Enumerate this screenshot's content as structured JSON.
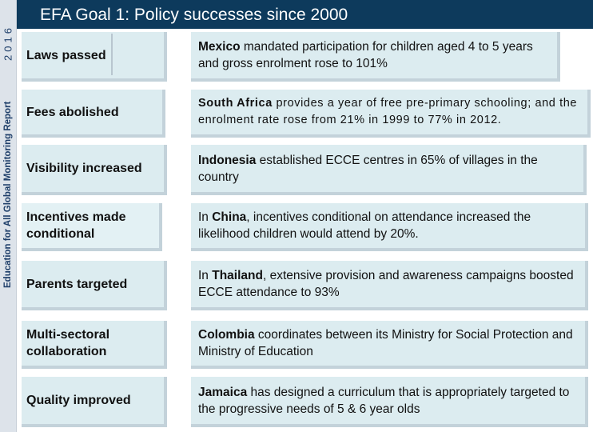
{
  "sidebar": {
    "year": "2016",
    "report": "Education for All Global Monitoring Report"
  },
  "header": {
    "title": "EFA Goal 1: Policy successes since 2000"
  },
  "rows": [
    {
      "label": "Laws passed",
      "country": "Mexico",
      "text": " mandated participation for children aged 4 to 5 years and gross enrolment rose to 101%"
    },
    {
      "label": "Fees abolished",
      "country": "South Africa",
      "text": " provides a year of free pre-primary schooling; and the enrolment rate rose from 21% in 1999 to 77% in 2012."
    },
    {
      "label": "Visibility increased",
      "country": "Indonesia",
      "text": " established ECCE centres in 65% of villages in the country"
    },
    {
      "label": "Incentives made conditional",
      "prefix": "In ",
      "country": "China",
      "text": ", incentives conditional on attendance increased the likelihood children would attend by 20%."
    },
    {
      "label": "Parents targeted",
      "prefix": "In ",
      "country": "Thailand",
      "text": ", extensive provision and awareness campaigns boosted ECCE attendance to 93%"
    },
    {
      "label": "Multi-sectoral collaboration",
      "country": "Colombia",
      "text": " coordinates between its Ministry for Social Protection and Ministry of Education"
    },
    {
      "label": "Quality improved",
      "country": "Jamaica",
      "text": " has designed a curriculum that is appropriately targeted to the progressive needs of 5 & 6 year olds"
    }
  ]
}
